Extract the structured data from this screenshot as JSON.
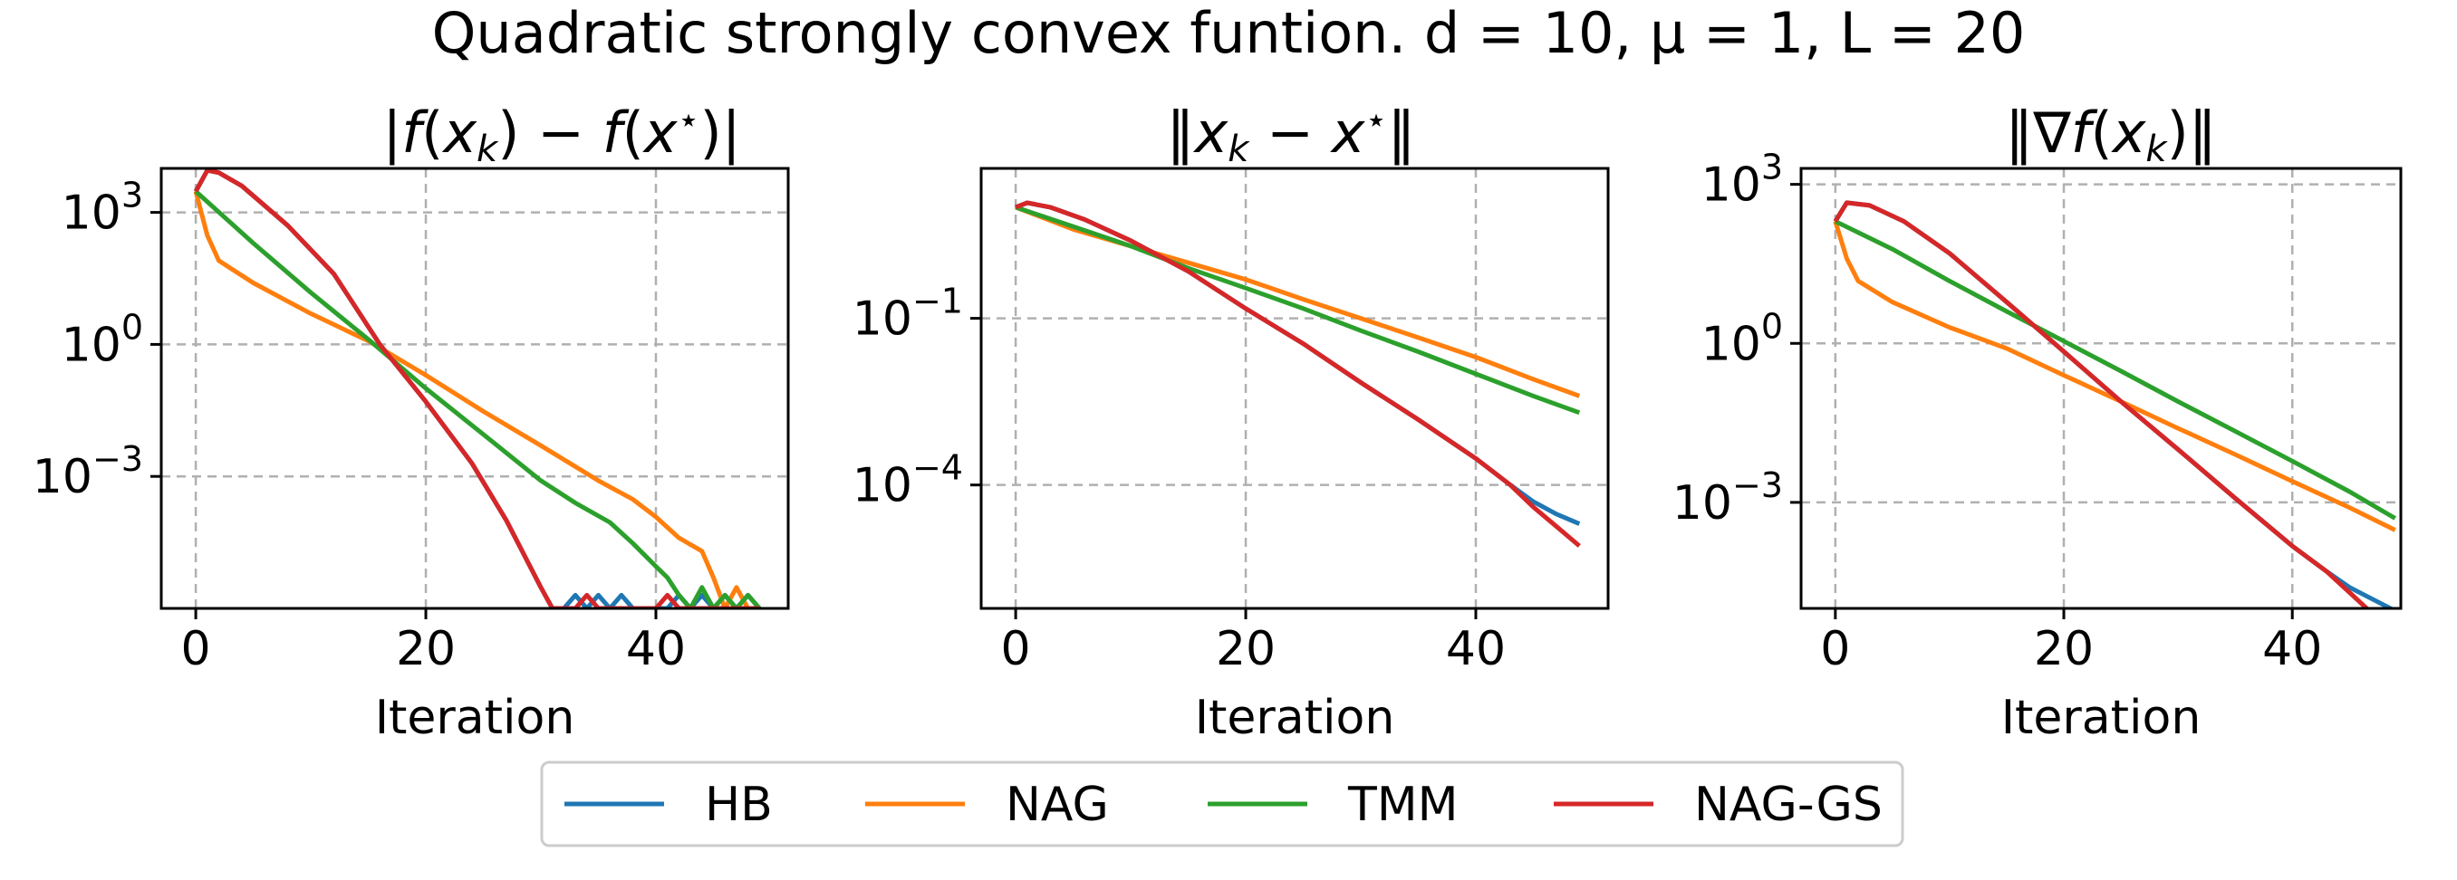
{
  "suptitle": "Quadratic strongly convex funtion. d = 10, μ = 1, L = 20",
  "colors": {
    "HB": "#1f77b4",
    "NAG": "#ff7f0e",
    "TMM": "#2ca02c",
    "NAG-GS": "#d62728",
    "grid": "#b0b0b0"
  },
  "legend": {
    "placement": "bottom-center",
    "items": [
      "HB",
      "NAG",
      "TMM",
      "NAG-GS"
    ]
  },
  "chart_data": [
    {
      "type": "line",
      "title": "|f(x_k) − f(x⋆)|",
      "xlabel": "Iteration",
      "yscale": "log",
      "grid": true,
      "xlim": [
        -3,
        51.5
      ],
      "ylim": [
        1e-06,
        10000.0
      ],
      "xticks": [
        {
          "v": 0,
          "label": "0"
        },
        {
          "v": 20,
          "label": "20"
        },
        {
          "v": 40,
          "label": "40"
        }
      ],
      "yticks": [
        {
          "v": 1000,
          "base": "10",
          "exp": "3"
        },
        {
          "v": 1,
          "base": "10",
          "exp": "0"
        },
        {
          "v": 0.001,
          "base": "10",
          "exp": "−3"
        }
      ],
      "series": [
        {
          "name": "HB",
          "points": [
            [
              0,
              3000
            ],
            [
              1,
              9000
            ],
            [
              2,
              8000
            ],
            [
              4,
              4000
            ],
            [
              8,
              500
            ],
            [
              12,
              40
            ],
            [
              16,
              1
            ],
            [
              20,
              0.05
            ],
            [
              24,
              0.002
            ],
            [
              27,
              0.0001
            ],
            [
              30,
              3e-06
            ],
            [
              31,
              1e-06
            ],
            [
              32,
              1e-06
            ],
            [
              33,
              2e-06
            ],
            [
              34,
              1e-06
            ],
            [
              35,
              2e-06
            ],
            [
              36,
              1e-06
            ],
            [
              37,
              2e-06
            ],
            [
              38,
              1e-06
            ],
            [
              39,
              1e-06
            ],
            [
              40,
              1e-06
            ],
            [
              41,
              1e-06
            ],
            [
              42,
              2e-06
            ],
            [
              43,
              1e-06
            ],
            [
              44,
              2e-06
            ],
            [
              45,
              1e-06
            ],
            [
              46,
              2e-06
            ],
            [
              47,
              1e-06
            ],
            [
              48,
              2e-06
            ],
            [
              49,
              1e-06
            ]
          ]
        },
        {
          "name": "NAG",
          "points": [
            [
              0,
              3000
            ],
            [
              1,
              300
            ],
            [
              2,
              80
            ],
            [
              5,
              25
            ],
            [
              10,
              5
            ],
            [
              15,
              1.2
            ],
            [
              20,
              0.2
            ],
            [
              25,
              0.03
            ],
            [
              30,
              0.005
            ],
            [
              35,
              0.0008
            ],
            [
              38,
              0.0003
            ],
            [
              40,
              0.00012
            ],
            [
              42,
              4e-05
            ],
            [
              44,
              2e-05
            ],
            [
              45,
              5e-06
            ],
            [
              46,
              1e-06
            ],
            [
              47,
              3e-06
            ],
            [
              48,
              1e-06
            ],
            [
              49,
              1e-06
            ]
          ]
        },
        {
          "name": "TMM",
          "points": [
            [
              0,
              3000
            ],
            [
              5,
              200
            ],
            [
              10,
              15
            ],
            [
              15,
              1.3
            ],
            [
              20,
              0.1
            ],
            [
              25,
              0.009
            ],
            [
              30,
              0.0008
            ],
            [
              33,
              0.00025
            ],
            [
              36,
              9e-05
            ],
            [
              38,
              3e-05
            ],
            [
              40,
              9e-06
            ],
            [
              41,
              5e-06
            ],
            [
              42,
              2e-06
            ],
            [
              43,
              1e-06
            ],
            [
              44,
              3e-06
            ],
            [
              45,
              1e-06
            ],
            [
              46,
              2e-06
            ],
            [
              47,
              1e-06
            ],
            [
              48,
              2e-06
            ],
            [
              49,
              1e-06
            ]
          ]
        },
        {
          "name": "NAG-GS",
          "points": [
            [
              0,
              3000
            ],
            [
              1,
              9000
            ],
            [
              2,
              8000
            ],
            [
              4,
              4000
            ],
            [
              8,
              500
            ],
            [
              12,
              40
            ],
            [
              16,
              1
            ],
            [
              20,
              0.05
            ],
            [
              24,
              0.002
            ],
            [
              27,
              0.0001
            ],
            [
              30,
              3e-06
            ],
            [
              31,
              1e-06
            ],
            [
              32,
              1e-06
            ],
            [
              33,
              1e-06
            ],
            [
              34,
              2e-06
            ],
            [
              35,
              1e-06
            ],
            [
              36,
              1e-06
            ],
            [
              37,
              1e-06
            ],
            [
              38,
              1e-06
            ],
            [
              40,
              1e-06
            ],
            [
              41,
              2e-06
            ],
            [
              42,
              1e-06
            ],
            [
              43,
              1e-06
            ],
            [
              44,
              1e-06
            ],
            [
              45,
              1e-06
            ],
            [
              46,
              1e-06
            ],
            [
              47,
              1e-06
            ],
            [
              48,
              1e-06
            ],
            [
              49,
              1e-06
            ]
          ]
        }
      ]
    },
    {
      "type": "line",
      "title": "‖x_k − x⋆‖",
      "xlabel": "Iteration",
      "yscale": "log",
      "grid": true,
      "xlim": [
        -3,
        51.5
      ],
      "ylim": [
        6e-07,
        50
      ],
      "xticks": [
        {
          "v": 0,
          "label": "0"
        },
        {
          "v": 20,
          "label": "20"
        },
        {
          "v": 40,
          "label": "40"
        }
      ],
      "yticks": [
        {
          "v": 0.1,
          "base": "10",
          "exp": "−1"
        },
        {
          "v": 0.0001,
          "base": "10",
          "exp": "−4"
        }
      ],
      "series": [
        {
          "name": "HB",
          "points": [
            [
              0,
              10
            ],
            [
              1,
              12
            ],
            [
              3,
              10
            ],
            [
              6,
              6
            ],
            [
              10,
              2.5
            ],
            [
              15,
              0.7
            ],
            [
              20,
              0.15
            ],
            [
              25,
              0.035
            ],
            [
              30,
              0.007
            ],
            [
              35,
              0.0015
            ],
            [
              40,
              0.0003
            ],
            [
              43,
              0.0001
            ],
            [
              45,
              5e-05
            ],
            [
              47,
              3e-05
            ],
            [
              49,
              2e-05
            ]
          ]
        },
        {
          "name": "NAG",
          "points": [
            [
              0,
              10
            ],
            [
              5,
              4
            ],
            [
              10,
              2
            ],
            [
              15,
              1
            ],
            [
              20,
              0.5
            ],
            [
              25,
              0.22
            ],
            [
              30,
              0.1
            ],
            [
              35,
              0.045
            ],
            [
              40,
              0.02
            ],
            [
              45,
              0.008
            ],
            [
              49,
              0.004
            ]
          ]
        },
        {
          "name": "TMM",
          "points": [
            [
              0,
              10
            ],
            [
              5,
              4.5
            ],
            [
              10,
              2
            ],
            [
              15,
              0.8
            ],
            [
              20,
              0.35
            ],
            [
              25,
              0.15
            ],
            [
              30,
              0.06
            ],
            [
              35,
              0.025
            ],
            [
              40,
              0.01
            ],
            [
              45,
              0.004
            ],
            [
              49,
              0.002
            ]
          ]
        },
        {
          "name": "NAG-GS",
          "points": [
            [
              0,
              10
            ],
            [
              1,
              12
            ],
            [
              3,
              10
            ],
            [
              6,
              6
            ],
            [
              10,
              2.5
            ],
            [
              15,
              0.7
            ],
            [
              20,
              0.15
            ],
            [
              25,
              0.035
            ],
            [
              30,
              0.007
            ],
            [
              35,
              0.0015
            ],
            [
              40,
              0.0003
            ],
            [
              43,
              0.0001
            ],
            [
              45,
              4e-05
            ],
            [
              47,
              1.8e-05
            ],
            [
              49,
              8e-06
            ]
          ]
        }
      ]
    },
    {
      "type": "line",
      "title": "‖∇f(x_k)‖",
      "xlabel": "Iteration",
      "yscale": "log",
      "grid": true,
      "xlim": [
        -3,
        49.5
      ],
      "ylim": [
        1e-05,
        2000
      ],
      "xticks": [
        {
          "v": 0,
          "label": "0"
        },
        {
          "v": 20,
          "label": "20"
        },
        {
          "v": 40,
          "label": "40"
        }
      ],
      "yticks": [
        {
          "v": 1000,
          "base": "10",
          "exp": "3"
        },
        {
          "v": 1,
          "base": "10",
          "exp": "0"
        },
        {
          "v": 0.001,
          "base": "10",
          "exp": "−3"
        }
      ],
      "series": [
        {
          "name": "HB",
          "points": [
            [
              0,
              200
            ],
            [
              1,
              450
            ],
            [
              3,
              400
            ],
            [
              6,
              200
            ],
            [
              10,
              50
            ],
            [
              15,
              6
            ],
            [
              20,
              0.7
            ],
            [
              25,
              0.08
            ],
            [
              30,
              0.01
            ],
            [
              35,
              0.0012
            ],
            [
              40,
              0.00015
            ],
            [
              43,
              5e-05
            ],
            [
              45,
              2.5e-05
            ],
            [
              47,
              1.5e-05
            ],
            [
              49,
              9e-06
            ]
          ]
        },
        {
          "name": "NAG",
          "points": [
            [
              0,
              200
            ],
            [
              1,
              40
            ],
            [
              2,
              15
            ],
            [
              5,
              6
            ],
            [
              10,
              2
            ],
            [
              15,
              0.8
            ],
            [
              20,
              0.25
            ],
            [
              25,
              0.08
            ],
            [
              30,
              0.025
            ],
            [
              35,
              0.008
            ],
            [
              40,
              0.0025
            ],
            [
              45,
              0.0008
            ],
            [
              49,
              0.0003
            ]
          ]
        },
        {
          "name": "TMM",
          "points": [
            [
              0,
              200
            ],
            [
              5,
              60
            ],
            [
              10,
              15
            ],
            [
              15,
              4
            ],
            [
              20,
              1.1
            ],
            [
              25,
              0.3
            ],
            [
              30,
              0.08
            ],
            [
              35,
              0.022
            ],
            [
              40,
              0.006
            ],
            [
              45,
              0.0016
            ],
            [
              49,
              0.0005
            ]
          ]
        },
        {
          "name": "NAG-GS",
          "points": [
            [
              0,
              200
            ],
            [
              1,
              450
            ],
            [
              3,
              400
            ],
            [
              6,
              200
            ],
            [
              10,
              50
            ],
            [
              15,
              6
            ],
            [
              20,
              0.7
            ],
            [
              25,
              0.08
            ],
            [
              30,
              0.01
            ],
            [
              35,
              0.0012
            ],
            [
              40,
              0.00015
            ],
            [
              43,
              5e-05
            ],
            [
              45,
              2e-05
            ],
            [
              47,
              8e-06
            ],
            [
              49,
              3e-06
            ]
          ]
        }
      ]
    }
  ]
}
